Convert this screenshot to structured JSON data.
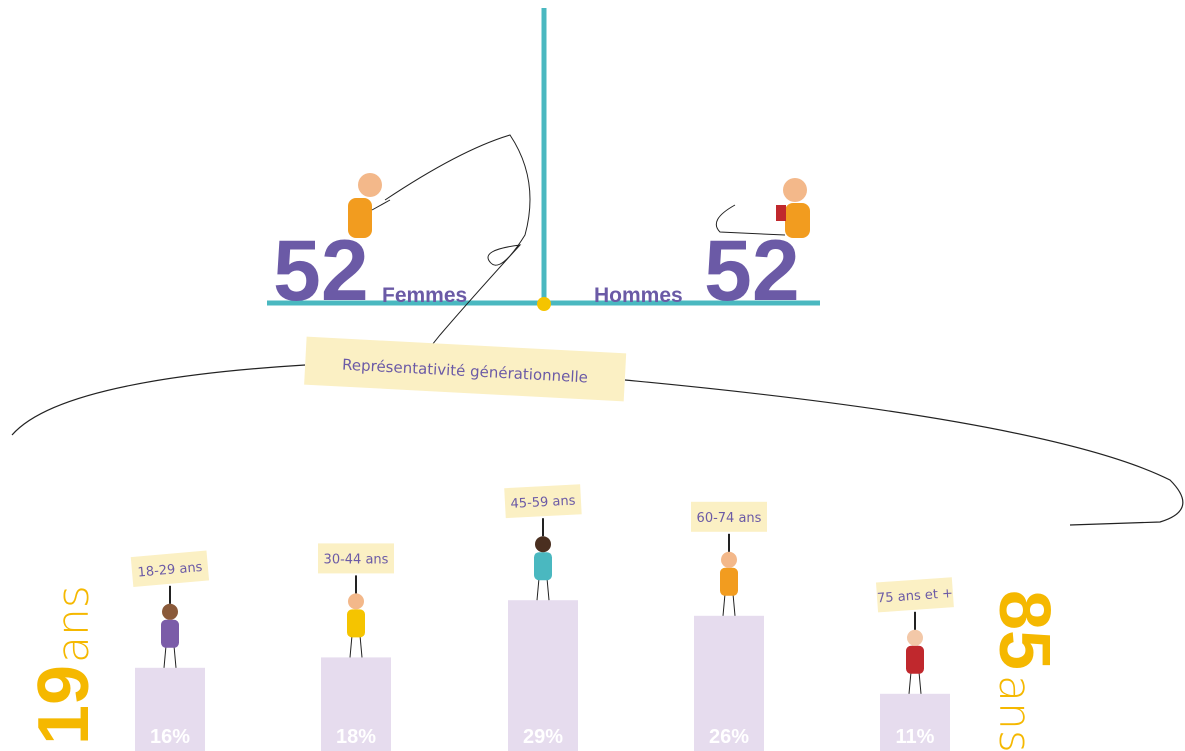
{
  "balance": {
    "women": {
      "count": "52",
      "label": "Femmes"
    },
    "men": {
      "count": "52",
      "label": "Hommes"
    }
  },
  "age_range": {
    "min": {
      "value": "19",
      "unit": "ans"
    },
    "max": {
      "value": "85",
      "unit": "ans"
    }
  },
  "chart_data": {
    "type": "bar",
    "title": "Représentativité générationnelle",
    "categories": [
      "18-29 ans",
      "30-44 ans",
      "45-59 ans",
      "60-74 ans",
      "75 ans et +"
    ],
    "values": [
      16,
      18,
      29,
      26,
      11
    ],
    "value_labels": [
      "16%",
      "18%",
      "29%",
      "26%",
      "11%"
    ],
    "color": "#e6dcee"
  }
}
